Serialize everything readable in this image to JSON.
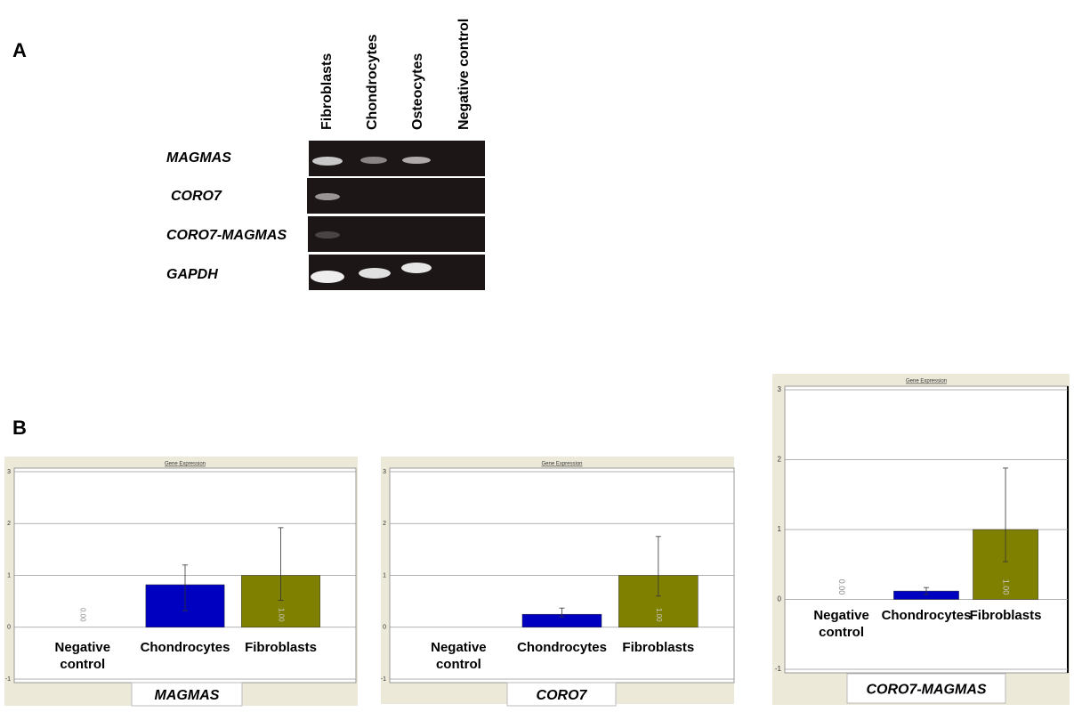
{
  "panels": {
    "a": "A",
    "b": "B"
  },
  "gel": {
    "lanes": [
      "Fibroblasts",
      "Chondrocytes",
      "Osteocytes",
      "Negative control"
    ],
    "genes": [
      "MAGMAS",
      "CORO7",
      "CORO7-MAGMAS",
      "GAPDH"
    ]
  },
  "chart_data": [
    {
      "type": "bar",
      "title": "Gene Expression",
      "caption": "MAGMAS",
      "categories": [
        "Negative control",
        "Chondrocytes",
        "Fibroblasts"
      ],
      "values": [
        0,
        0.82,
        1
      ],
      "value_labels": [
        "0.00",
        null,
        "1.00"
      ],
      "err_up": [
        null,
        0.38,
        0.92
      ],
      "err_down": [
        null,
        0.5,
        0.48
      ],
      "colors": [
        "#0000c0",
        "#0000c0",
        "#808000"
      ],
      "ylim": [
        -1,
        3
      ],
      "yticks": [
        -1,
        0,
        1,
        2,
        3
      ],
      "grid": true
    },
    {
      "type": "bar",
      "title": "Gene Expression",
      "caption": "CORO7",
      "categories": [
        "Negative control",
        "Chondrocytes",
        "Fibroblasts"
      ],
      "values": [
        0,
        0.25,
        1
      ],
      "value_labels": [
        null,
        null,
        "1.00"
      ],
      "err_up": [
        null,
        0.12,
        0.75
      ],
      "err_down": [
        null,
        0.05,
        0.4
      ],
      "colors": [
        "#0000c0",
        "#0000c0",
        "#808000"
      ],
      "ylim": [
        -1,
        3
      ],
      "yticks": [
        -1,
        0,
        1,
        2,
        3
      ],
      "grid": true
    },
    {
      "type": "bar",
      "title": "Gene Expression",
      "caption": "CORO7-MAGMAS",
      "categories": [
        "Negative control",
        "Chondrocytes",
        "Fibroblasts"
      ],
      "values": [
        0,
        0.12,
        1
      ],
      "value_labels": [
        "0.00",
        null,
        "1.00"
      ],
      "err_up": [
        null,
        0.05,
        0.88
      ],
      "err_down": [
        null,
        0.05,
        0.46
      ],
      "colors": [
        "#0000c0",
        "#0000c0",
        "#808000"
      ],
      "ylim": [
        -1,
        3
      ],
      "yticks": [
        -1,
        0,
        1,
        2,
        3
      ],
      "grid": true
    }
  ]
}
